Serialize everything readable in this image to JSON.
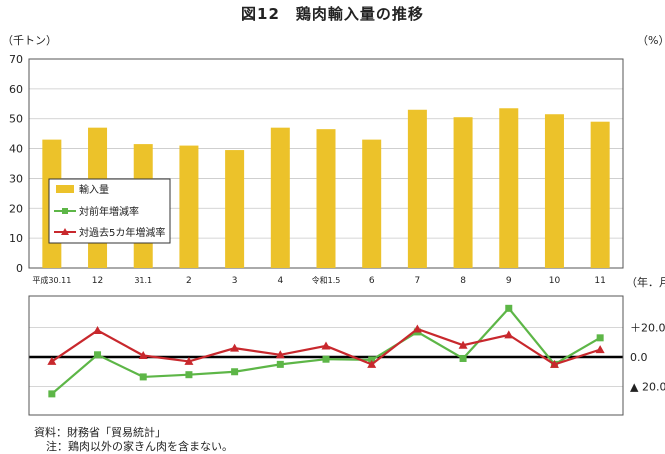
{
  "chart_data": {
    "type": "bar+line",
    "title": "図12　鶏肉輸入量の推移",
    "categories": [
      "平成30.11",
      "12",
      "31.1",
      "2",
      "3",
      "4",
      "令和1.5",
      "6",
      "7",
      "8",
      "9",
      "10",
      "11"
    ],
    "left_axis_unit": "（千トン）",
    "right_axis_unit": "（%）",
    "x_axis_unit": "（年．月）",
    "upper_panel": {
      "ylim": [
        0,
        70
      ],
      "yticks": [
        "0",
        "10",
        "20",
        "30",
        "40",
        "50",
        "60",
        "70"
      ],
      "series": [
        {
          "name": "輸入量",
          "color": "#ecc22a",
          "values": [
            43,
            47,
            41.5,
            41,
            39.5,
            47,
            46.5,
            43,
            53,
            50.5,
            53.5,
            51.5,
            49
          ]
        }
      ]
    },
    "lower_panel": {
      "ylim": [
        -20,
        20
      ],
      "yticks": [
        "＋20.0",
        "0.0",
        "▲ 20.0"
      ],
      "series": [
        {
          "name": "対前年増減率",
          "color": "#5db647",
          "values": [
            -25,
            1.5,
            -13.5,
            -12,
            -10,
            -5,
            -1.5,
            -2,
            17,
            -1,
            33,
            -5,
            13
          ]
        },
        {
          "name": "対過去5カ年増減率",
          "color": "#c8282d",
          "values": [
            -3,
            18,
            1,
            -3,
            6,
            1.5,
            7.5,
            -5,
            19,
            8,
            15,
            -5,
            5
          ]
        }
      ]
    },
    "legend_position": "left-inside"
  },
  "source": "資料：財務省「貿易統計」",
  "note": "注：鶏肉以外の家きん肉を含まない。"
}
